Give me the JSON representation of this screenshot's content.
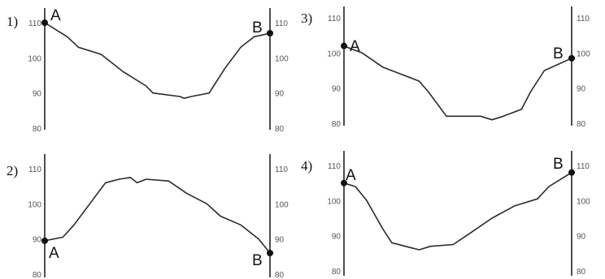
{
  "chart_data": [
    {
      "type": "line",
      "label": "1)",
      "ylim": [
        80,
        110
      ],
      "left_ticks": [
        "110",
        "100",
        "90",
        "80"
      ],
      "right_ticks": [
        "110",
        "100",
        "90",
        "80"
      ],
      "start_label": "A",
      "end_label": "B",
      "x": [
        0,
        0.1,
        0.15,
        0.25,
        0.35,
        0.45,
        0.48,
        0.6,
        0.62,
        0.65,
        0.73,
        0.8,
        0.87,
        0.93,
        1.0
      ],
      "values": [
        110,
        106,
        103,
        101,
        96,
        92,
        90,
        89,
        88.5,
        89,
        90,
        97,
        103,
        106,
        107
      ]
    },
    {
      "type": "line",
      "label": "2)",
      "ylim": [
        80,
        110
      ],
      "left_ticks": [
        "110",
        "100",
        "90",
        "80"
      ],
      "right_ticks": [
        "110",
        "100",
        "90",
        "80"
      ],
      "start_label": "A",
      "end_label": "B",
      "x": [
        0,
        0.08,
        0.13,
        0.2,
        0.27,
        0.33,
        0.38,
        0.41,
        0.45,
        0.55,
        0.63,
        0.72,
        0.78,
        0.87,
        0.95,
        1.0
      ],
      "values": [
        89.5,
        90.5,
        94,
        100,
        106,
        107,
        107.5,
        106,
        107,
        106.5,
        103,
        100,
        96.5,
        94,
        90,
        86
      ]
    },
    {
      "type": "line",
      "label": "3)",
      "ylim": [
        80,
        110
      ],
      "left_ticks": [
        "110",
        "100",
        "90",
        "80"
      ],
      "right_ticks": [
        "110",
        "100",
        "90",
        "80"
      ],
      "start_label": "A",
      "end_label": "B",
      "x": [
        0,
        0.08,
        0.17,
        0.33,
        0.37,
        0.45,
        0.6,
        0.65,
        0.7,
        0.78,
        0.82,
        0.88,
        1.0
      ],
      "values": [
        102,
        100,
        96,
        92,
        89,
        82,
        82,
        81,
        82,
        84,
        89,
        95,
        98.5
      ]
    },
    {
      "type": "line",
      "label": "4)",
      "ylim": [
        80,
        110
      ],
      "left_ticks": [
        "110",
        "100",
        "90",
        "80"
      ],
      "right_ticks": [
        "110",
        "100",
        "90",
        "80"
      ],
      "start_label": "A",
      "end_label": "B",
      "x": [
        0,
        0.05,
        0.1,
        0.17,
        0.21,
        0.27,
        0.33,
        0.38,
        0.48,
        0.56,
        0.65,
        0.75,
        0.85,
        0.9,
        0.95,
        1.0
      ],
      "values": [
        105,
        104,
        100,
        92,
        88,
        87,
        86,
        87,
        87.5,
        91,
        95,
        98.5,
        100.5,
        104,
        106,
        108
      ]
    }
  ]
}
